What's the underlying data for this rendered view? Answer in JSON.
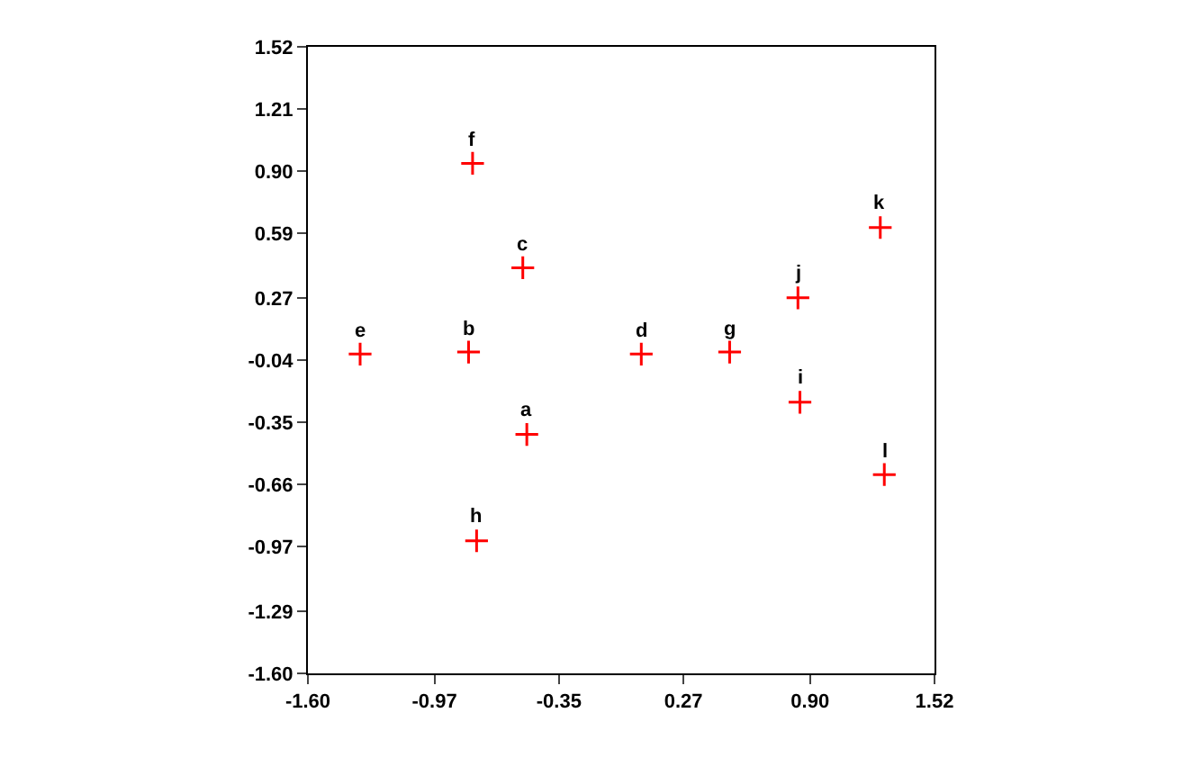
{
  "chart_data": {
    "type": "scatter",
    "marker": "cross",
    "x": [
      -0.51,
      -0.8,
      -0.53,
      0.06,
      -1.34,
      -0.78,
      0.5,
      -0.76,
      0.85,
      0.84,
      1.25,
      1.27
    ],
    "series": [
      {
        "color": "#ff0000",
        "values": [
          -0.41,
          0.0,
          0.42,
          -0.01,
          -0.01,
          0.94,
          0.0,
          -0.94,
          -0.25,
          0.27,
          0.62,
          -0.61
        ]
      }
    ],
    "annotations": [
      {
        "text": "a",
        "x": -0.51,
        "y": -0.41
      },
      {
        "text": "b",
        "x": -0.8,
        "y": 0.0
      },
      {
        "text": "c",
        "x": -0.53,
        "y": 0.42
      },
      {
        "text": "d",
        "x": 0.06,
        "y": -0.01
      },
      {
        "text": "e",
        "x": -1.34,
        "y": -0.01
      },
      {
        "text": "f",
        "x": -0.78,
        "y": 0.94
      },
      {
        "text": "g",
        "x": 0.5,
        "y": 0.0
      },
      {
        "text": "h",
        "x": -0.76,
        "y": -0.94
      },
      {
        "text": "i",
        "x": 0.85,
        "y": -0.25
      },
      {
        "text": "j",
        "x": 0.84,
        "y": 0.27
      },
      {
        "text": "k",
        "x": 1.25,
        "y": 0.62
      },
      {
        "text": "l",
        "x": 1.27,
        "y": -0.61
      }
    ],
    "xlim": [
      -1.6,
      1.52
    ],
    "xticks": [
      {
        "value": -1.6,
        "label": "-1.60"
      },
      {
        "value": -0.97,
        "label": "-0.97"
      },
      {
        "value": -0.35,
        "label": "-0.35"
      },
      {
        "value": 0.27,
        "label": "0.27"
      },
      {
        "value": 0.9,
        "label": "0.90"
      },
      {
        "value": 1.52,
        "label": "1.52"
      }
    ],
    "ylim": [
      -1.6,
      1.52
    ],
    "yticks": [
      {
        "value": -1.6,
        "label": "-1.60"
      },
      {
        "value": -1.29,
        "label": "-1.29"
      },
      {
        "value": -0.97,
        "label": "-0.97"
      },
      {
        "value": -0.66,
        "label": "-0.66"
      },
      {
        "value": -0.35,
        "label": "-0.35"
      },
      {
        "value": -0.04,
        "label": "-0.04"
      },
      {
        "value": 0.27,
        "label": "0.27"
      },
      {
        "value": 0.59,
        "label": "0.59"
      },
      {
        "value": 0.9,
        "label": "0.90"
      },
      {
        "value": 1.21,
        "label": "1.21"
      },
      {
        "value": 1.52,
        "label": "1.52"
      }
    ]
  }
}
